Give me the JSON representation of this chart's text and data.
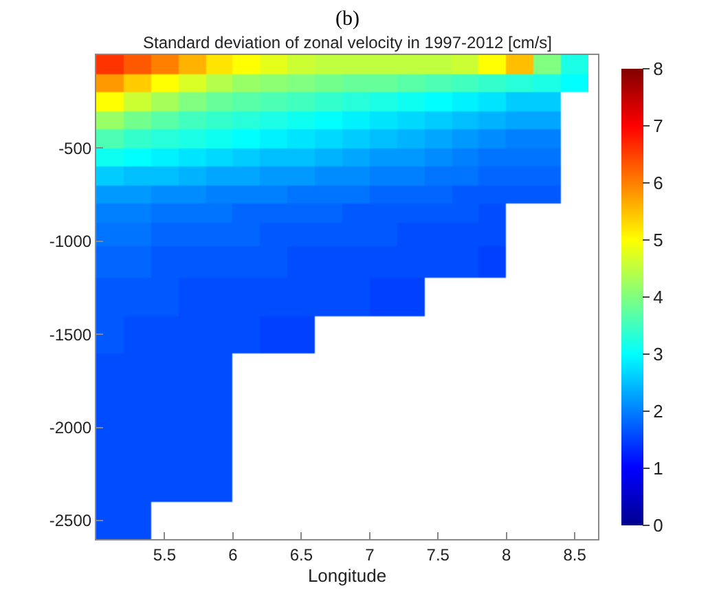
{
  "chart_data": {
    "type": "heatmap",
    "title": "Standard deviation of zonal velocity in 1997-2012 [cm/s]",
    "xlabel": "Longitude",
    "annotations": [
      "(b)"
    ],
    "x": [
      5.1,
      5.3,
      5.5,
      5.7,
      5.9,
      6.1,
      6.3,
      6.5,
      6.7,
      6.9,
      7.1,
      7.3,
      7.5,
      7.7,
      7.9,
      8.1,
      8.3,
      8.5
    ],
    "y": [
      -50,
      -150,
      -250,
      -350,
      -450,
      -550,
      -650,
      -750,
      -850,
      -950,
      -1100,
      -1300,
      -1500,
      -1700,
      -1900,
      -2100,
      -2300,
      -2500
    ],
    "cells": [
      [
        6.6,
        6.3,
        6.0,
        5.6,
        5.2,
        5.0,
        4.8,
        4.6,
        4.5,
        4.5,
        4.5,
        4.5,
        4.5,
        4.6,
        5.0,
        5.5,
        4.0,
        3.2
      ],
      [
        5.8,
        5.4,
        5.0,
        4.7,
        4.4,
        4.2,
        4.1,
        4.0,
        3.9,
        3.8,
        3.8,
        3.7,
        3.6,
        3.5,
        3.4,
        3.3,
        3.2,
        3.0
      ],
      [
        5.0,
        4.6,
        4.3,
        4.0,
        3.8,
        3.7,
        3.6,
        3.5,
        3.4,
        3.3,
        3.2,
        3.1,
        3.0,
        2.9,
        2.8,
        2.6,
        2.6,
        null
      ],
      [
        4.2,
        3.9,
        3.7,
        3.5,
        3.4,
        3.3,
        3.2,
        3.1,
        3.0,
        2.9,
        2.8,
        2.7,
        2.6,
        2.5,
        2.4,
        2.3,
        2.3,
        null
      ],
      [
        3.6,
        3.4,
        3.3,
        3.2,
        3.1,
        3.0,
        2.9,
        2.8,
        2.7,
        2.6,
        2.5,
        2.4,
        2.3,
        2.2,
        2.1,
        2.0,
        2.0,
        null
      ],
      [
        3.1,
        3.0,
        2.9,
        2.8,
        2.7,
        2.6,
        2.5,
        2.5,
        2.4,
        2.3,
        2.2,
        2.2,
        2.1,
        2.0,
        1.9,
        1.9,
        1.9,
        null
      ],
      [
        2.6,
        2.5,
        2.5,
        2.4,
        2.3,
        2.3,
        2.2,
        2.2,
        2.1,
        2.1,
        2.0,
        2.0,
        1.9,
        1.9,
        1.8,
        1.8,
        1.8,
        null
      ],
      [
        2.2,
        2.2,
        2.1,
        2.1,
        2.0,
        2.0,
        2.0,
        1.9,
        1.9,
        1.9,
        1.8,
        1.8,
        1.8,
        1.7,
        1.7,
        1.7,
        1.7,
        null
      ],
      [
        2.0,
        2.0,
        1.9,
        1.9,
        1.9,
        1.8,
        1.8,
        1.8,
        1.8,
        1.7,
        1.7,
        1.7,
        1.7,
        1.7,
        1.6,
        null,
        null,
        null
      ],
      [
        1.9,
        1.9,
        1.8,
        1.8,
        1.8,
        1.8,
        1.7,
        1.7,
        1.7,
        1.7,
        1.7,
        1.6,
        1.6,
        1.6,
        1.6,
        null,
        null,
        null
      ],
      [
        1.8,
        1.8,
        1.7,
        1.7,
        1.7,
        1.7,
        1.7,
        1.6,
        1.6,
        1.6,
        1.6,
        1.6,
        1.6,
        1.6,
        1.5,
        null,
        null,
        null
      ],
      [
        1.7,
        1.7,
        1.7,
        1.6,
        1.6,
        1.6,
        1.6,
        1.6,
        1.6,
        1.6,
        1.5,
        1.5,
        null,
        null,
        null,
        null,
        null,
        null
      ],
      [
        1.7,
        1.6,
        1.6,
        1.6,
        1.6,
        1.6,
        1.5,
        1.5,
        null,
        null,
        null,
        null,
        null,
        null,
        null,
        null,
        null,
        null
      ],
      [
        1.6,
        1.6,
        1.6,
        1.6,
        1.6,
        null,
        null,
        null,
        null,
        null,
        null,
        null,
        null,
        null,
        null,
        null,
        null,
        null
      ],
      [
        1.6,
        1.6,
        1.6,
        1.6,
        1.6,
        null,
        null,
        null,
        null,
        null,
        null,
        null,
        null,
        null,
        null,
        null,
        null,
        null
      ],
      [
        1.6,
        1.6,
        1.6,
        1.6,
        1.6,
        null,
        null,
        null,
        null,
        null,
        null,
        null,
        null,
        null,
        null,
        null,
        null,
        null
      ],
      [
        1.6,
        1.6,
        1.6,
        1.6,
        1.6,
        null,
        null,
        null,
        null,
        null,
        null,
        null,
        null,
        null,
        null,
        null,
        null,
        null
      ],
      [
        1.6,
        1.6,
        null,
        null,
        null,
        null,
        null,
        null,
        null,
        null,
        null,
        null,
        null,
        null,
        null,
        null,
        null,
        null
      ]
    ],
    "clim": [
      0,
      8
    ],
    "cticks": [
      0,
      1,
      2,
      3,
      4,
      5,
      6,
      7,
      8
    ],
    "xlim": [
      5.0,
      8.67
    ],
    "xticks": [
      5.5,
      6,
      6.5,
      7,
      7.5,
      8,
      8.5
    ],
    "ylim": [
      -2600,
      0
    ],
    "yticks": [
      -2500,
      -2000,
      -1500,
      -1000,
      -500
    ]
  }
}
